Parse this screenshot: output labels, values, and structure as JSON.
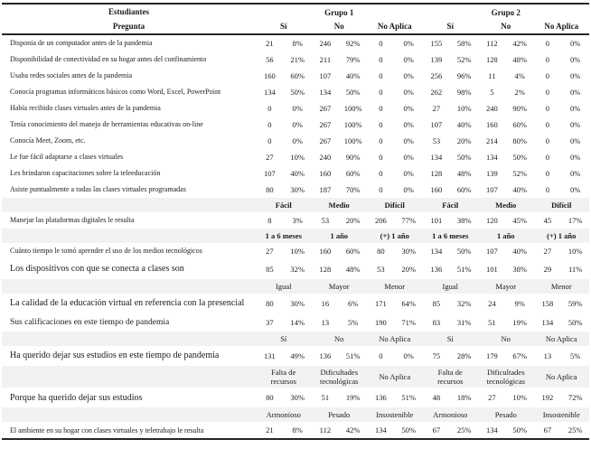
{
  "table": {
    "header": {
      "left_title": "Estudiantes",
      "left_subtitle": "Pregunta",
      "groups": [
        "Grupo 1",
        "Grupo 2"
      ],
      "columns": [
        "Sí",
        "No",
        "No Aplica",
        "Sí",
        "No",
        "No Aplica"
      ]
    },
    "rows": [
      {
        "type": "data",
        "size": "sm",
        "question": "Disponía de un computador antes de la pandemia",
        "cells": [
          "21",
          "8%",
          "246",
          "92%",
          "0",
          "0%",
          "155",
          "58%",
          "112",
          "42%",
          "0",
          "0%"
        ]
      },
      {
        "type": "data",
        "size": "sm",
        "question": "Disponibilidad de conectividad en su hogar antes del confinamiento",
        "cells": [
          "56",
          "21%",
          "211",
          "79%",
          "0",
          "0%",
          "139",
          "52%",
          "128",
          "48%",
          "0",
          "0%"
        ]
      },
      {
        "type": "data",
        "size": "sm",
        "question": "Usaba redes sociales antes de la pandemia",
        "cells": [
          "160",
          "60%",
          "107",
          "40%",
          "0",
          "0%",
          "256",
          "96%",
          "11",
          "4%",
          "0",
          "0%"
        ]
      },
      {
        "type": "data",
        "size": "sm",
        "question": "Conocía programas informáticos básicos como Word, Excel, PowerPoint",
        "cells": [
          "134",
          "50%",
          "134",
          "50%",
          "0",
          "0%",
          "262",
          "98%",
          "5",
          "2%",
          "0",
          "0%"
        ]
      },
      {
        "type": "data",
        "size": "sm",
        "question": "Había recibido clases virtuales antes de la pandemia",
        "cells": [
          "0",
          "0%",
          "267",
          "100%",
          "0",
          "0%",
          "27",
          "10%",
          "240",
          "90%",
          "0",
          "0%"
        ]
      },
      {
        "type": "data",
        "size": "sm",
        "question": "Tenía conocimiento del manejo de herramientas educativas on-line",
        "cells": [
          "0",
          "0%",
          "267",
          "100%",
          "0",
          "0%",
          "107",
          "40%",
          "160",
          "60%",
          "0",
          "0%"
        ]
      },
      {
        "type": "data",
        "size": "sm",
        "question": "Conocía Meet, Zoom, etc.",
        "cells": [
          "0",
          "0%",
          "267",
          "100%",
          "0",
          "0%",
          "53",
          "20%",
          "214",
          "80%",
          "0",
          "0%"
        ]
      },
      {
        "type": "data",
        "size": "sm",
        "question": "Le fue fácil adaptarse a clases virtuales",
        "cells": [
          "27",
          "10%",
          "240",
          "90%",
          "0",
          "0%",
          "134",
          "50%",
          "134",
          "50%",
          "0",
          "0%"
        ]
      },
      {
        "type": "data",
        "size": "sm",
        "question": "Les brindaron capacitaciones sobre la teleeducación",
        "cells": [
          "107",
          "40%",
          "160",
          "60%",
          "0",
          "0%",
          "128",
          "48%",
          "139",
          "52%",
          "0",
          "0%"
        ]
      },
      {
        "type": "data",
        "size": "sm",
        "question": "Asiste puntualmente a todas las clases virtuales programadas",
        "cells": [
          "80",
          "30%",
          "187",
          "70%",
          "0",
          "0%",
          "160",
          "60%",
          "107",
          "40%",
          "0",
          "0%"
        ]
      },
      {
        "type": "subheader",
        "bold": true,
        "labels": [
          "Fácil",
          "Medio",
          "Difícil",
          "Fácil",
          "Medio",
          "Difícil"
        ]
      },
      {
        "type": "data",
        "size": "sm",
        "question": "Manejar las plataformas digitales le resulta",
        "cells": [
          "8",
          "3%",
          "53",
          "20%",
          "206",
          "77%",
          "101",
          "38%",
          "120",
          "45%",
          "45",
          "17%"
        ]
      },
      {
        "type": "subheader",
        "bold": true,
        "labels": [
          "1 a 6 meses",
          "1 año",
          "(+) 1 año",
          "1 a 6 meses",
          "1 año",
          "(+) 1 año"
        ]
      },
      {
        "type": "data",
        "size": "sm",
        "question": "Cuánto tiempo le tomó aprender el uso de los medios tecnológicos",
        "cells": [
          "27",
          "10%",
          "160",
          "60%",
          "80",
          "30%",
          "134",
          "50%",
          "107",
          "40%",
          "27",
          "10%"
        ]
      },
      {
        "type": "data",
        "size": "lg",
        "question": "Los dispositivos con que se conecta a clases son",
        "cells": [
          "85",
          "32%",
          "128",
          "48%",
          "53",
          "20%",
          "136",
          "51%",
          "101",
          "38%",
          "29",
          "11%"
        ]
      },
      {
        "type": "subheader",
        "bold": false,
        "labels": [
          "Igual",
          "Mayor",
          "Menor",
          "Igual",
          "Mayor",
          "Menor"
        ]
      },
      {
        "type": "data",
        "size": "lg",
        "question": "La calidad de la educación virtual en referencia con la presencial",
        "cells": [
          "80",
          "30%",
          "16",
          "6%",
          "171",
          "64%",
          "85",
          "32%",
          "24",
          "9%",
          "158",
          "59%"
        ]
      },
      {
        "type": "data",
        "size": "md",
        "question": "Sus calificaciones en este tiempo de pandemia",
        "cells": [
          "37",
          "14%",
          "13",
          "5%",
          "190",
          "71%",
          "83",
          "31%",
          "51",
          "19%",
          "134",
          "50%"
        ]
      },
      {
        "type": "subheader",
        "bold": false,
        "labels": [
          "Sí",
          "No",
          "No Aplica",
          "Sí",
          "No",
          "No Aplica"
        ]
      },
      {
        "type": "data",
        "size": "lg",
        "question": "Ha querido dejar sus estudios en este tiempo de pandemia",
        "cells": [
          "131",
          "49%",
          "136",
          "51%",
          "0",
          "0%",
          "75",
          "28%",
          "179",
          "67%",
          "13",
          "5%"
        ]
      },
      {
        "type": "subheader",
        "bold": false,
        "labels": [
          "Falta de recursos",
          "Dificultades tecnológicas",
          "No Aplica",
          "Falta de recursos",
          "Dificultades tecnológicas",
          "No Aplica"
        ]
      },
      {
        "type": "data",
        "size": "lg",
        "question": "Porque ha querido dejar sus estudios",
        "cells": [
          "80",
          "30%",
          "51",
          "19%",
          "136",
          "51%",
          "48",
          "18%",
          "27",
          "10%",
          "192",
          "72%"
        ]
      },
      {
        "type": "subheader",
        "bold": false,
        "labels": [
          "Armonioso",
          "Pesado",
          "Insostenible",
          "Armonioso",
          "Pesado",
          "Insostenible"
        ]
      },
      {
        "type": "data",
        "size": "sm",
        "question": "El ambiente en su hogar con clases virtuales y teletrabajo le resulta",
        "cells": [
          "21",
          "8%",
          "112",
          "42%",
          "134",
          "50%",
          "67",
          "25%",
          "134",
          "50%",
          "67",
          "25%"
        ]
      }
    ],
    "colors": {
      "subheader_bg": "#f2f2f2",
      "border": "#262626",
      "text": "#1a1a1a"
    }
  }
}
